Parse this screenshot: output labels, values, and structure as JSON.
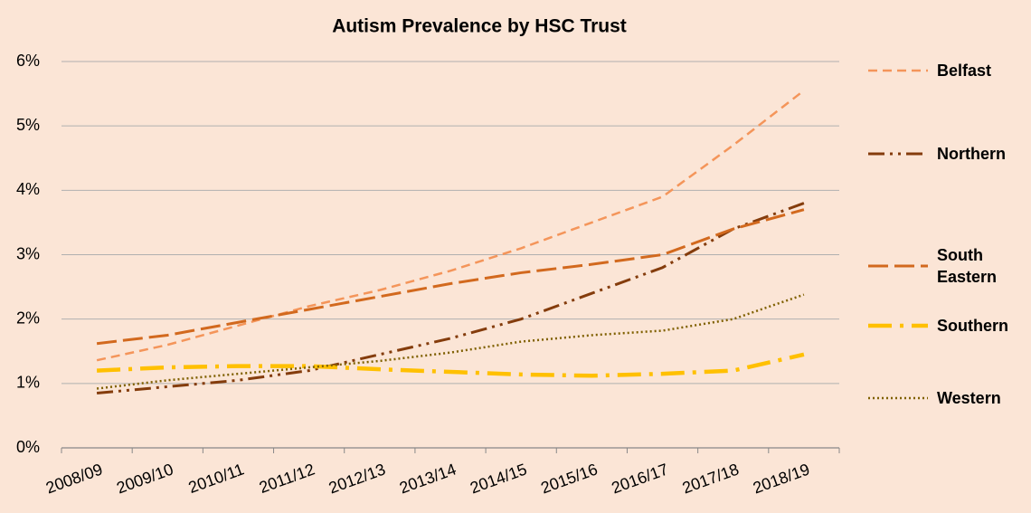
{
  "chart_data": {
    "type": "line",
    "title": "Autism Prevalence by HSC Trust",
    "categories": [
      "2008/09",
      "2009/10",
      "2010/11",
      "2011/12",
      "2012/13",
      "2013/14",
      "2014/15",
      "2015/16",
      "2016/17",
      "2017/18",
      "2018/19"
    ],
    "series": [
      {
        "name": "Belfast",
        "color": "#f4955a",
        "values": [
          1.36,
          1.6,
          1.9,
          2.2,
          2.45,
          2.75,
          3.1,
          3.5,
          3.9,
          4.7,
          5.55
        ]
      },
      {
        "name": "Northern",
        "color": "#843c0c",
        "values": [
          0.85,
          0.95,
          1.05,
          1.2,
          1.45,
          1.7,
          2.0,
          2.4,
          2.8,
          3.4,
          3.8
        ]
      },
      {
        "name": "South Eastern",
        "color": "#d2691e",
        "values": [
          1.62,
          1.75,
          1.95,
          2.15,
          2.35,
          2.55,
          2.72,
          2.85,
          3.0,
          3.4,
          3.7
        ]
      },
      {
        "name": "Southern",
        "color": "#ffc000",
        "values": [
          1.2,
          1.25,
          1.27,
          1.27,
          1.22,
          1.18,
          1.14,
          1.12,
          1.15,
          1.2,
          1.45
        ]
      },
      {
        "name": "Western",
        "color": "#7f6000",
        "values": [
          0.92,
          1.05,
          1.15,
          1.25,
          1.35,
          1.48,
          1.65,
          1.75,
          1.82,
          2.0,
          2.38
        ]
      }
    ],
    "ylim": [
      0,
      6
    ],
    "yticks": [
      {
        "value": 0,
        "label": "0%"
      },
      {
        "value": 1,
        "label": "1%"
      },
      {
        "value": 2,
        "label": "2%"
      },
      {
        "value": 3,
        "label": "3%"
      },
      {
        "value": 4,
        "label": "4%"
      },
      {
        "value": 5,
        "label": "5%"
      },
      {
        "value": 6,
        "label": "6%"
      }
    ],
    "grid": true,
    "legend": "right"
  }
}
